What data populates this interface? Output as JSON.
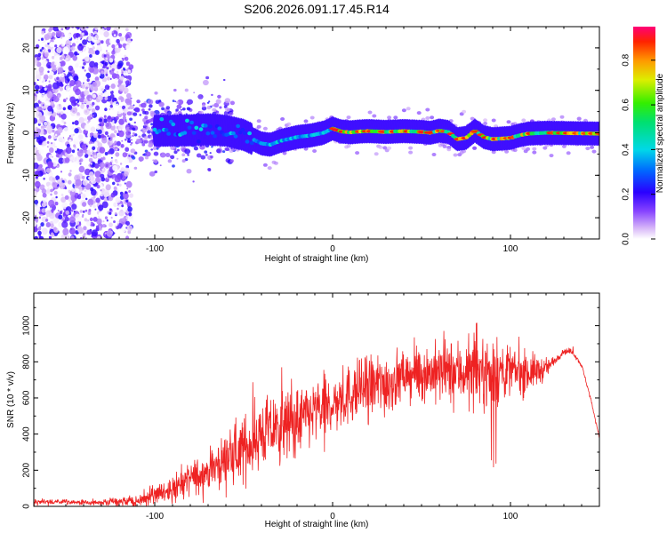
{
  "title": "S206.2026.091.17.45.R14",
  "chart_data": [
    {
      "type": "heatmap",
      "name": "spectrogram",
      "xlabel": "Height of straight line (km)",
      "ylabel": "Frequency (Hz)",
      "xlim": [
        -168,
        150
      ],
      "ylim": [
        -25,
        25
      ],
      "xticks": [
        -100,
        0,
        100
      ],
      "yticks": [
        -20,
        -10,
        0,
        10,
        20
      ],
      "ridge": [
        [
          -95,
          0.5
        ],
        [
          -80,
          0.6
        ],
        [
          -70,
          0.8
        ],
        [
          -60,
          0.5
        ],
        [
          -50,
          -0.5
        ],
        [
          -40,
          -2.5
        ],
        [
          -35,
          -2.8
        ],
        [
          -30,
          -2.0
        ],
        [
          -25,
          -1.5
        ],
        [
          -20,
          -1.0
        ],
        [
          -12,
          -0.6
        ],
        [
          -5,
          0.0
        ],
        [
          0,
          1.0
        ],
        [
          5,
          0.3
        ],
        [
          10,
          0.1
        ],
        [
          15,
          0.3
        ],
        [
          20,
          0.4
        ],
        [
          30,
          0.2
        ],
        [
          40,
          0.4
        ],
        [
          50,
          0.2
        ],
        [
          55,
          0.0
        ],
        [
          60,
          0.5
        ],
        [
          65,
          0.2
        ],
        [
          70,
          -1.5
        ],
        [
          75,
          -1.2
        ],
        [
          80,
          0.5
        ],
        [
          85,
          -1.0
        ],
        [
          90,
          -1.5
        ],
        [
          100,
          -1.2
        ],
        [
          105,
          -0.6
        ],
        [
          110,
          -0.2
        ],
        [
          120,
          0.0
        ],
        [
          135,
          -0.1
        ],
        [
          150,
          -0.2
        ]
      ],
      "colorbar": {
        "label": "Normalized spectral amplitude",
        "range": [
          0,
          0.95
        ],
        "ticks": [
          0.0,
          0.2,
          0.4,
          0.6,
          0.8
        ],
        "tick_labels": [
          "0.0",
          "0.2",
          "0.4",
          "0.6",
          "0.8"
        ]
      }
    },
    {
      "type": "line",
      "name": "snr",
      "xlabel": "Height of straight line (km)",
      "ylabel": "SNR (10 * v/v)",
      "xlim": [
        -168,
        150
      ],
      "ylim": [
        0,
        1180
      ],
      "xticks": [
        -100,
        0,
        100
      ],
      "yticks": [
        0,
        200,
        400,
        600,
        800,
        1000
      ],
      "color": "#ee2222",
      "envelope": [
        [
          -168,
          25
        ],
        [
          -130,
          20
        ],
        [
          -110,
          30
        ],
        [
          -100,
          60
        ],
        [
          -90,
          100
        ],
        [
          -80,
          150
        ],
        [
          -70,
          200
        ],
        [
          -60,
          260
        ],
        [
          -50,
          320
        ],
        [
          -40,
          400
        ],
        [
          -30,
          440
        ],
        [
          -20,
          470
        ],
        [
          -10,
          520
        ],
        [
          0,
          560
        ],
        [
          10,
          620
        ],
        [
          20,
          660
        ],
        [
          30,
          680
        ],
        [
          40,
          720
        ],
        [
          50,
          740
        ],
        [
          60,
          740
        ],
        [
          70,
          745
        ],
        [
          80,
          745
        ],
        [
          90,
          745
        ],
        [
          100,
          745
        ],
        [
          110,
          740
        ],
        [
          120,
          760
        ],
        [
          130,
          860
        ],
        [
          135,
          855
        ],
        [
          140,
          780
        ],
        [
          145,
          600
        ],
        [
          150,
          380
        ]
      ],
      "noise": [
        [
          -168,
          15
        ],
        [
          -130,
          12
        ],
        [
          -105,
          40
        ],
        [
          -90,
          70
        ],
        [
          -70,
          100
        ],
        [
          -50,
          160
        ],
        [
          -30,
          180
        ],
        [
          -10,
          160
        ],
        [
          10,
          150
        ],
        [
          30,
          170
        ],
        [
          40,
          120
        ],
        [
          50,
          140
        ],
        [
          70,
          160
        ],
        [
          90,
          170
        ],
        [
          105,
          120
        ],
        [
          115,
          80
        ],
        [
          125,
          20
        ],
        [
          150,
          5
        ]
      ]
    }
  ]
}
